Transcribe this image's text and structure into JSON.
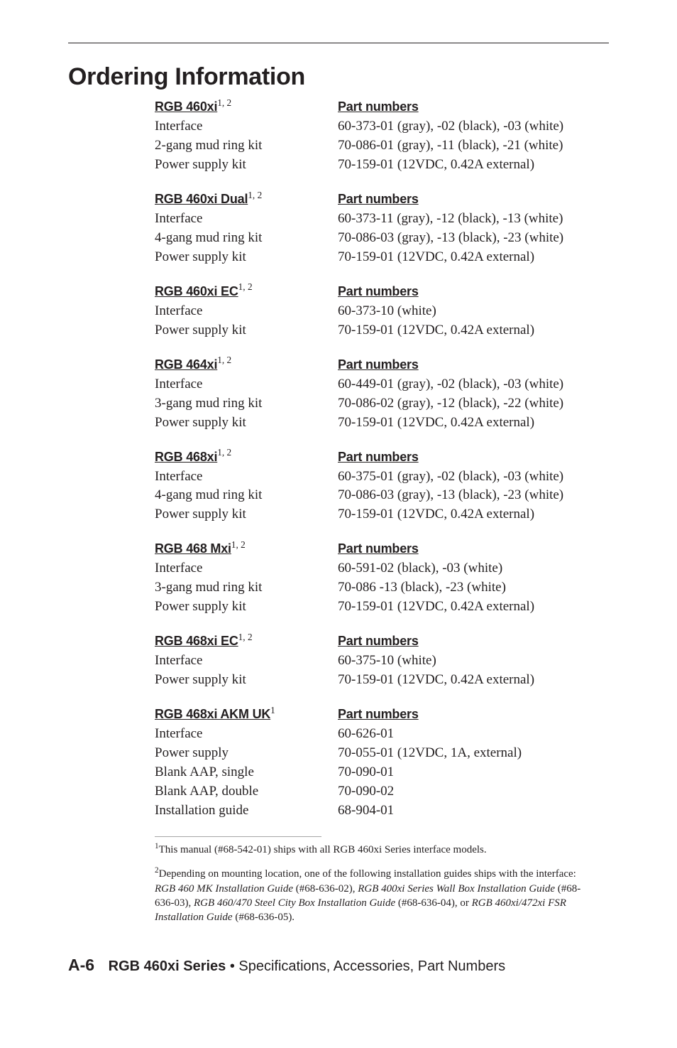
{
  "title": "Ordering Information",
  "sections": [
    {
      "heading_left": "RGB 460xi",
      "heading_sup": "1, 2",
      "heading_right": "Part numbers",
      "rows": [
        {
          "l": "Interface",
          "r": "60-373-01 (gray), -02 (black), -03 (white)"
        },
        {
          "l": "2-gang mud ring kit",
          "r": "70-086-01 (gray), -11 (black), -21 (white)"
        },
        {
          "l": "Power supply kit",
          "r": "70-159-01 (12VDC, 0.42A external)"
        }
      ]
    },
    {
      "heading_left": "RGB 460xi Dual",
      "heading_sup": "1, 2",
      "heading_right": "Part numbers",
      "rows": [
        {
          "l": "Interface",
          "r": "60-373-11 (gray), -12 (black), -13 (white)"
        },
        {
          "l": "4-gang mud ring kit",
          "r": "70-086-03 (gray), -13 (black), -23 (white)"
        },
        {
          "l": "Power supply kit",
          "r": "70-159-01 (12VDC, 0.42A external)"
        }
      ]
    },
    {
      "heading_left": "RGB 460xi EC",
      "heading_sup": "1, 2",
      "heading_right": "Part numbers",
      "rows": [
        {
          "l": "Interface",
          "r": "60-373-10 (white)"
        },
        {
          "l": "Power supply kit",
          "r": "70-159-01 (12VDC, 0.42A external)"
        }
      ]
    },
    {
      "heading_left": "RGB 464xi",
      "heading_sup": "1, 2",
      "heading_right": "Part numbers",
      "rows": [
        {
          "l": "Interface",
          "r": "60-449-01 (gray), -02 (black), -03 (white)"
        },
        {
          "l": "3-gang mud ring kit",
          "r": "70-086-02 (gray), -12 (black), -22 (white)"
        },
        {
          "l": "Power supply kit",
          "r": "70-159-01 (12VDC, 0.42A external)"
        }
      ]
    },
    {
      "heading_left": "RGB 468xi",
      "heading_sup": "1, 2",
      "heading_right": "Part numbers",
      "rows": [
        {
          "l": "Interface",
          "r": "60-375-01 (gray), -02 (black), -03 (white)"
        },
        {
          "l": "4-gang mud ring kit",
          "r": "70-086-03 (gray), -13 (black), -23 (white)"
        },
        {
          "l": "Power supply kit",
          "r": "70-159-01 (12VDC, 0.42A external)"
        }
      ]
    },
    {
      "heading_left": "RGB 468 Mxi",
      "heading_sup": "1, 2",
      "heading_right": "Part numbers",
      "rows": [
        {
          "l": "Interface",
          "r": "60-591-02 (black), -03 (white)"
        },
        {
          "l": "3-gang mud ring kit",
          "r": "70-086 -13 (black), -23 (white)"
        },
        {
          "l": "Power supply kit",
          "r": "70-159-01 (12VDC, 0.42A external)"
        }
      ]
    },
    {
      "heading_left": "RGB 468xi EC",
      "heading_sup": "1, 2",
      "heading_right": "Part numbers",
      "rows": [
        {
          "l": "Interface",
          "r": "60-375-10 (white)"
        },
        {
          "l": "Power supply kit",
          "r": "70-159-01 (12VDC, 0.42A external)"
        }
      ]
    },
    {
      "heading_left": "RGB 468xi AKM UK",
      "heading_sup": "1",
      "heading_right": "Part numbers",
      "rows": [
        {
          "l": "Interface",
          "r": "60-626-01"
        },
        {
          "l": "Power supply",
          "r": "70-055-01 (12VDC, 1A, external)"
        },
        {
          "l": "Blank AAP, single",
          "r": "70-090-01"
        },
        {
          "l": "Blank AAP, double",
          "r": "70-090-02"
        },
        {
          "l": "Installation guide",
          "r": "68-904-01"
        }
      ]
    }
  ],
  "footnotes": {
    "note1_sup": "1",
    "note1_text": "This manual (#68-542-01) ships with all RGB 460xi  Series interface models.",
    "note2_sup": "2",
    "note2_pre": "Depending on mounting location, one of the following installation guides ships with the interface: ",
    "note2_i1": "RGB 460 MK Installation Guide",
    "note2_s1": " (#68-636-02), ",
    "note2_i2": "RGB 400xi Series Wall Box Installation Guide",
    "note2_s2": " (#68-636-03), ",
    "note2_i3": "RGB 460/470 Steel City Box Installation Guide",
    "note2_s3": " (#68-636-04), or ",
    "note2_i4": "RGB 460xi/472xi FSR Installation Guide",
    "note2_s4": " (#68-636-05)."
  },
  "footer": {
    "page": "A-6",
    "bold": "RGB 460xi Series",
    "rest": " • Specifications, Accessories, Part Numbers"
  }
}
